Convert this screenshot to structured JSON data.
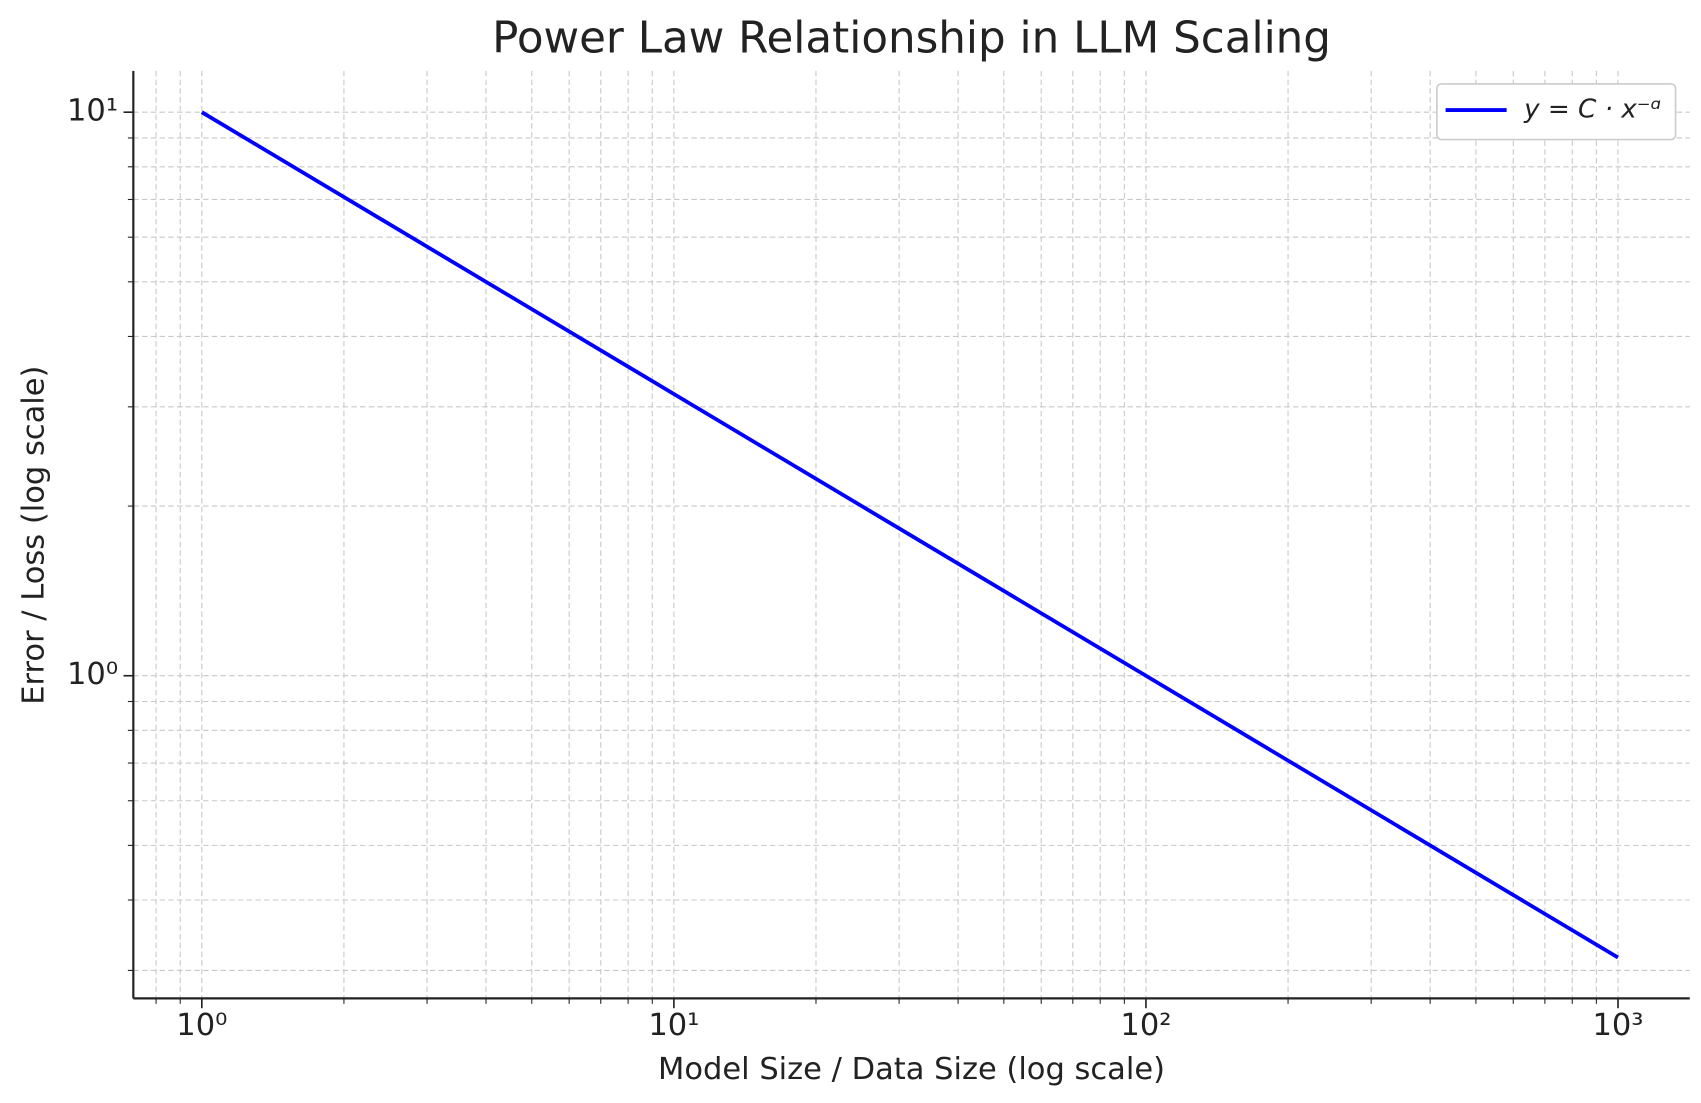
{
  "chart_data": {
    "type": "line",
    "title": "Power Law Relationship in LLM Scaling",
    "x_label": "Model Size / Data Size (log scale)",
    "y_label": "Error / Loss (log scale)",
    "x": [
      1,
      10,
      100,
      1000
    ],
    "series": [
      {
        "name": "y = C · x⁻ᵅ",
        "color": "#0000ff",
        "values": [
          10,
          3.162,
          1,
          0.3162
        ]
      }
    ],
    "x_log": true,
    "y_log": true,
    "xlim": [
      0.716,
      1419
    ],
    "ylim": [
      0.2676,
      11.84
    ],
    "xticks": [
      {
        "value": 1,
        "label": "10⁰"
      },
      {
        "value": 10,
        "label": "10¹"
      },
      {
        "value": 100,
        "label": "10²"
      },
      {
        "value": 1000,
        "label": "10³"
      }
    ],
    "yticks": [
      {
        "value": 1,
        "label": "10⁰"
      },
      {
        "value": 10,
        "label": "10¹"
      }
    ],
    "xminorticks": [
      0.8,
      0.9,
      2,
      3,
      4,
      5,
      6,
      7,
      8,
      9,
      20,
      30,
      40,
      50,
      60,
      70,
      80,
      90,
      200,
      300,
      400,
      500,
      600,
      700,
      800,
      900
    ],
    "yminorticks": [
      0.3,
      0.4,
      0.5,
      0.6,
      0.7,
      0.8,
      0.9,
      2,
      3,
      4,
      5,
      6,
      7,
      8,
      9
    ],
    "grid": true,
    "legend": "upper right"
  }
}
